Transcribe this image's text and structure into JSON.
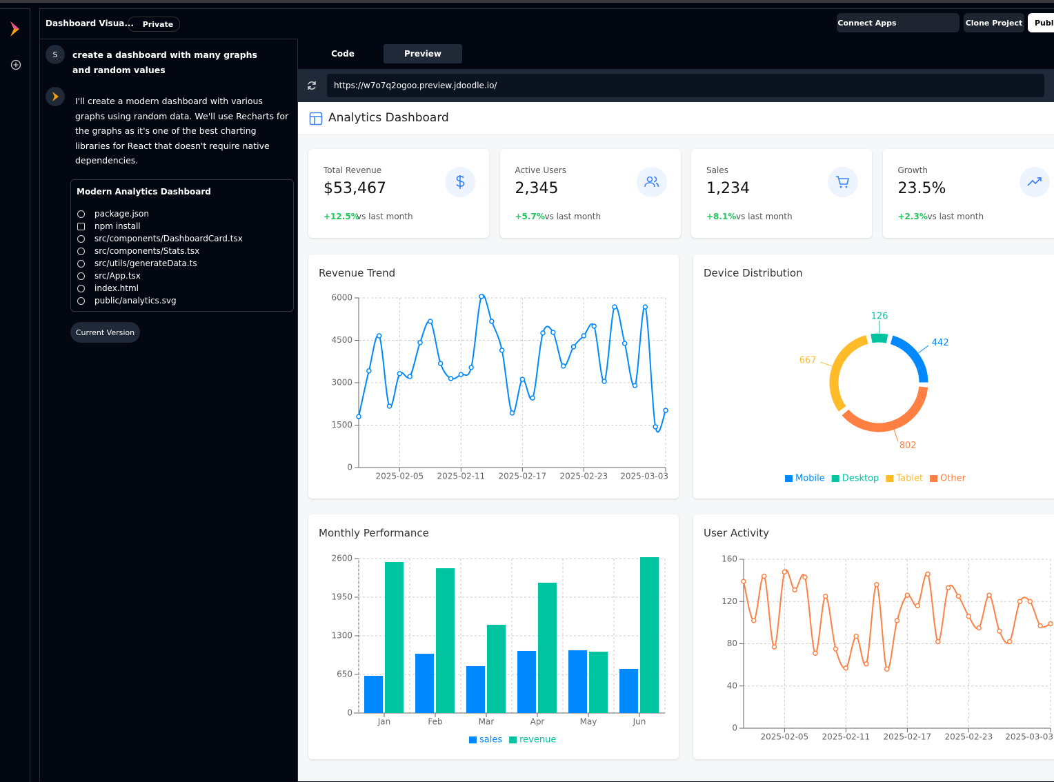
{
  "app": {
    "title": "Dashboard Visua...",
    "visibility": "Private",
    "buttons": [
      "Connect Apps",
      "Clone Project",
      "Publis"
    ]
  },
  "chat": {
    "user_initial": "S",
    "user_message": "create a dashboard with many graphs and random values",
    "assistant_message": "I'll create a modern dashboard with various graphs using random data. We'll use Recharts for the graphs as it's one of the best charting libraries for React that doesn't require native dependencies.",
    "artifact": {
      "title": "Modern Analytics Dashboard",
      "files": [
        "package.json",
        "npm install",
        "src/components/DashboardCard.tsx",
        "src/components/Stats.tsx",
        "src/utils/generateData.ts",
        "src/App.tsx",
        "index.html",
        "public/analytics.svg"
      ]
    },
    "version_button": "Current Version"
  },
  "preview": {
    "tabs": [
      "Code",
      "Preview"
    ],
    "url": "https://w7o7q2ogoo.preview.jdoodle.io/",
    "title": "Analytics Dashboard",
    "stats": [
      {
        "label": "Total Revenue",
        "value": "$53,467",
        "change": "+12.5%",
        "note": "vs last month"
      },
      {
        "label": "Active Users",
        "value": "2,345",
        "change": "+5.7%",
        "note": "vs last month"
      },
      {
        "label": "Sales",
        "value": "1,234",
        "change": "+8.1%",
        "note": "vs last month"
      },
      {
        "label": "Growth",
        "value": "23.5%",
        "change": "+2.3%",
        "note": "vs last month"
      }
    ]
  },
  "chart_data": [
    {
      "type": "line",
      "title": "Revenue Trend",
      "categories": [
        null,
        null,
        null,
        null,
        "2025-02-05",
        null,
        null,
        null,
        null,
        null,
        "2025-02-11",
        null,
        null,
        null,
        null,
        null,
        "2025-02-17",
        null,
        null,
        null,
        null,
        null,
        "2025-02-23",
        null,
        null,
        null,
        null,
        null,
        null,
        null,
        "2025-03-03"
      ],
      "values": [
        1800,
        3420,
        4660,
        2170,
        3320,
        3220,
        4420,
        5170,
        3680,
        3150,
        3290,
        3540,
        6050,
        5170,
        4150,
        1930,
        3120,
        2460,
        4760,
        4780,
        3590,
        4270,
        4660,
        5000,
        3050,
        5680,
        4390,
        2900,
        5680,
        1440,
        2020
      ],
      "color": "#0088FE",
      "ylim": [
        0,
        6000
      ],
      "yticks": [
        0,
        1500,
        3000,
        4500,
        6000
      ],
      "grid": true
    },
    {
      "type": "pie",
      "title": "Device Distribution",
      "categories": [
        "Mobile",
        "Desktop",
        "Tablet",
        "Other"
      ],
      "values": [
        442,
        126,
        667,
        802
      ],
      "colors": [
        "#0088FE",
        "#00C49F",
        "#FFBB28",
        "#FF8042"
      ],
      "donut": true,
      "legend": "bottom"
    },
    {
      "type": "bar",
      "title": "Monthly Performance",
      "categories": [
        "Jan",
        "Feb",
        "Mar",
        "Apr",
        "May",
        "Jun"
      ],
      "series": [
        {
          "name": "sales",
          "color": "#0088FE",
          "values": [
            627,
            998,
            789,
            1045,
            1056,
            743
          ]
        },
        {
          "name": "revenue",
          "color": "#00C49F",
          "values": [
            2542,
            2437,
            1486,
            2194,
            1033,
            2623
          ]
        }
      ],
      "ylim": [
        0,
        2600
      ],
      "yticks": [
        0,
        650,
        1300,
        1950,
        2600
      ],
      "grid": true,
      "legend": "bottom"
    },
    {
      "type": "line",
      "title": "User Activity",
      "categories": [
        null,
        null,
        null,
        null,
        "2025-02-05",
        null,
        null,
        null,
        null,
        null,
        "2025-02-11",
        null,
        null,
        null,
        null,
        null,
        "2025-02-17",
        null,
        null,
        null,
        null,
        null,
        "2025-02-23",
        null,
        null,
        null,
        null,
        null,
        null,
        null,
        "2025-03-03"
      ],
      "values": [
        139,
        102,
        144,
        77,
        148,
        131,
        143,
        71,
        125,
        75,
        57,
        87,
        61,
        136,
        56,
        102,
        126,
        116,
        146,
        82,
        133,
        125,
        106,
        95,
        126,
        92,
        82,
        120,
        120,
        97,
        99
      ],
      "color": "#FF8042",
      "ylim": [
        0,
        160
      ],
      "yticks": [
        0,
        40,
        80,
        120,
        160
      ],
      "grid": true
    }
  ]
}
